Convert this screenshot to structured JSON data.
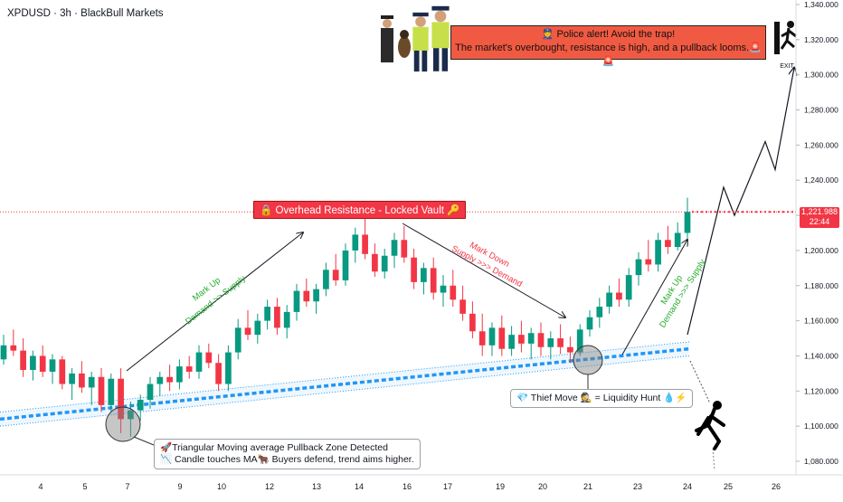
{
  "header": {
    "title": "XPDUSD · 3h · BlackBull Markets"
  },
  "annotations": {
    "resistance": "🔒 Overhead Resistance - Locked Vault 🔑",
    "police_line1": "👮 Police alert!  Avoid the trap!",
    "police_line2": "The market's overbought, resistance is high, and a pullback looms.🚨🚨",
    "mark_up_1_a": "Mark Up",
    "mark_up_1_b": "Demand >> Supply",
    "mark_down_a": "Mark Down",
    "mark_down_b": "Supply >>> Demand",
    "mark_up_2_a": "Mark Up",
    "mark_up_2_b": "Demand >>> Supply",
    "thief": "💎 Thief Move 🕵️ = Liquidity Hunt 💧⚡",
    "tma_line1": "🚀Triangular Moving average Pullback Zone Detected",
    "tma_line2": "📉 Candle touches MA🐂 Buyers defend, trend aims higher.",
    "exit": "EXIT"
  },
  "price_tag": {
    "price": "1,221.988",
    "time": "22:44"
  },
  "colors": {
    "up": "#089981",
    "down": "#f23645",
    "ma": "#2196f3",
    "resistance": "#f23645",
    "mark_up": "#22ab2c",
    "mark_down": "#f23645"
  },
  "chart_data": {
    "type": "candlestick",
    "symbol": "XPDUSD",
    "timeframe": "3h",
    "broker": "BlackBull Markets",
    "x_tick_labels": [
      "4",
      "5",
      "7",
      "9",
      "10",
      "12",
      "13",
      "14",
      "16",
      "17",
      "19",
      "20",
      "21",
      "23",
      "24",
      "25",
      "26"
    ],
    "y_tick_labels": [
      "1,080.000",
      "1,100.000",
      "1,120.000",
      "1,140.000",
      "1,160.000",
      "1,180.000",
      "1,200.000",
      "1,220.000",
      "1,240.000",
      "1,260.000",
      "1,280.000",
      "1,300.000",
      "1,320.000",
      "1,340.000"
    ],
    "ylim": [
      1073,
      1345
    ],
    "resistance_level": 1222,
    "last_price": 1221.988,
    "ma_line": {
      "start": 1104,
      "end": 1144
    },
    "projection_path": [
      1152,
      1236,
      1220,
      1262,
      1246,
      1304
    ],
    "candles_ohlc": [
      [
        1138,
        1152,
        1135,
        1146
      ],
      [
        1146,
        1155,
        1140,
        1143
      ],
      [
        1143,
        1150,
        1128,
        1132
      ],
      [
        1132,
        1143,
        1126,
        1140
      ],
      [
        1140,
        1146,
        1128,
        1131
      ],
      [
        1131,
        1141,
        1124,
        1138
      ],
      [
        1138,
        1140,
        1121,
        1124
      ],
      [
        1124,
        1133,
        1115,
        1130
      ],
      [
        1130,
        1137,
        1119,
        1122
      ],
      [
        1122,
        1131,
        1112,
        1128
      ],
      [
        1128,
        1133,
        1108,
        1112
      ],
      [
        1112,
        1130,
        1108,
        1127
      ],
      [
        1127,
        1133,
        1096,
        1104
      ],
      [
        1104,
        1114,
        1094,
        1109
      ],
      [
        1109,
        1118,
        1103,
        1115
      ],
      [
        1115,
        1128,
        1110,
        1124
      ],
      [
        1124,
        1131,
        1117,
        1128
      ],
      [
        1128,
        1135,
        1120,
        1125
      ],
      [
        1125,
        1138,
        1121,
        1134
      ],
      [
        1134,
        1140,
        1127,
        1131
      ],
      [
        1131,
        1146,
        1127,
        1142
      ],
      [
        1142,
        1147,
        1133,
        1136
      ],
      [
        1136,
        1141,
        1120,
        1124
      ],
      [
        1124,
        1146,
        1120,
        1142
      ],
      [
        1142,
        1161,
        1138,
        1156
      ],
      [
        1156,
        1166,
        1149,
        1152
      ],
      [
        1152,
        1164,
        1147,
        1160
      ],
      [
        1160,
        1172,
        1155,
        1168
      ],
      [
        1168,
        1173,
        1152,
        1156
      ],
      [
        1156,
        1169,
        1150,
        1165
      ],
      [
        1165,
        1181,
        1160,
        1177
      ],
      [
        1177,
        1184,
        1168,
        1171
      ],
      [
        1171,
        1181,
        1164,
        1178
      ],
      [
        1178,
        1193,
        1174,
        1189
      ],
      [
        1189,
        1198,
        1180,
        1183
      ],
      [
        1183,
        1204,
        1180,
        1200
      ],
      [
        1200,
        1213,
        1193,
        1209
      ],
      [
        1209,
        1218,
        1195,
        1198
      ],
      [
        1198,
        1204,
        1185,
        1188
      ],
      [
        1188,
        1201,
        1184,
        1197
      ],
      [
        1197,
        1210,
        1190,
        1206
      ],
      [
        1206,
        1214,
        1193,
        1196
      ],
      [
        1196,
        1201,
        1178,
        1182
      ],
      [
        1182,
        1193,
        1175,
        1190
      ],
      [
        1190,
        1196,
        1172,
        1176
      ],
      [
        1176,
        1186,
        1168,
        1180
      ],
      [
        1180,
        1189,
        1168,
        1172
      ],
      [
        1172,
        1180,
        1160,
        1164
      ],
      [
        1164,
        1171,
        1150,
        1154
      ],
      [
        1154,
        1164,
        1140,
        1146
      ],
      [
        1146,
        1159,
        1140,
        1156
      ],
      [
        1156,
        1163,
        1140,
        1144
      ],
      [
        1144,
        1157,
        1140,
        1152
      ],
      [
        1152,
        1160,
        1142,
        1147
      ],
      [
        1147,
        1156,
        1138,
        1153
      ],
      [
        1153,
        1159,
        1140,
        1145
      ],
      [
        1145,
        1154,
        1138,
        1150
      ],
      [
        1150,
        1158,
        1141,
        1145
      ],
      [
        1145,
        1151,
        1136,
        1142
      ],
      [
        1142,
        1158,
        1140,
        1155
      ],
      [
        1155,
        1166,
        1151,
        1162
      ],
      [
        1162,
        1173,
        1156,
        1168
      ],
      [
        1168,
        1180,
        1164,
        1176
      ],
      [
        1176,
        1184,
        1168,
        1172
      ],
      [
        1172,
        1190,
        1168,
        1186
      ],
      [
        1186,
        1199,
        1180,
        1195
      ],
      [
        1195,
        1206,
        1188,
        1192
      ],
      [
        1192,
        1210,
        1188,
        1206
      ],
      [
        1206,
        1214,
        1198,
        1202
      ],
      [
        1202,
        1216,
        1200,
        1210
      ],
      [
        1210,
        1230,
        1205,
        1222
      ]
    ]
  }
}
